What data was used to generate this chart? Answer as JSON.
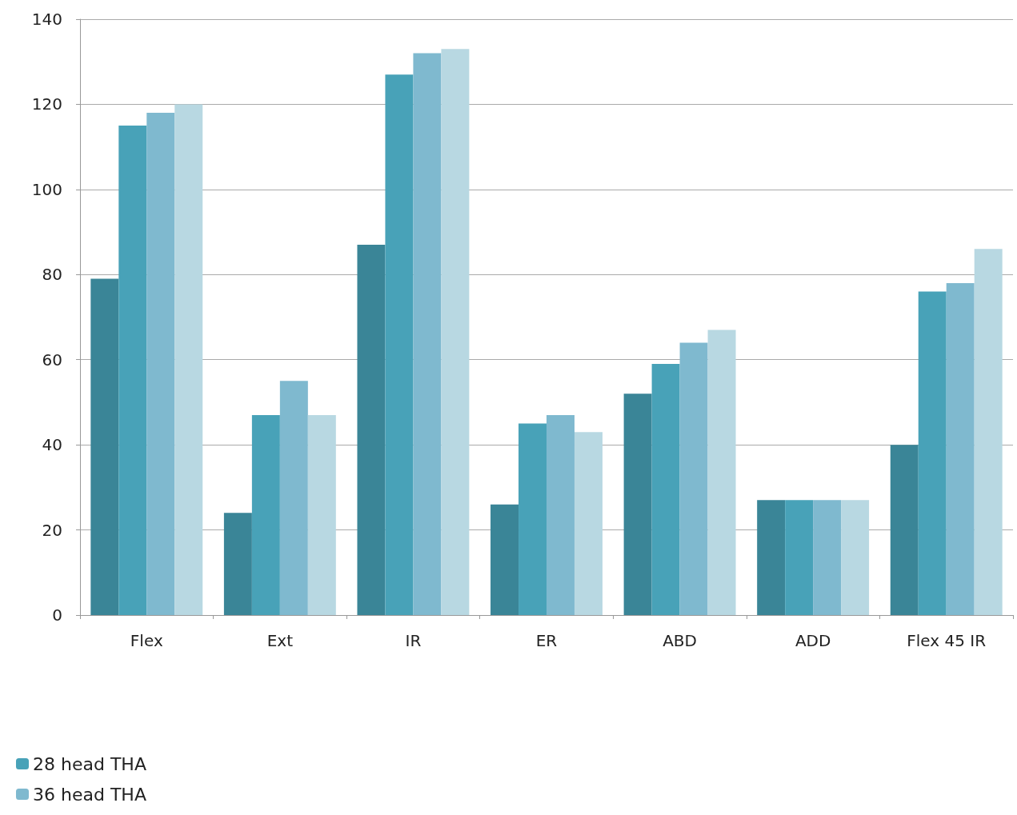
{
  "chart_data": {
    "type": "bar",
    "categories": [
      "Flex",
      "Ext",
      "IR",
      "ER",
      "ABD",
      "ADD",
      "Flex 45 IR"
    ],
    "series": [
      {
        "color": "#3a8597",
        "values": [
          79,
          24,
          87,
          26,
          52,
          27,
          40
        ]
      },
      {
        "name": "28 head THA",
        "color": "#48a2b8",
        "values": [
          115,
          47,
          127,
          45,
          59,
          27,
          76
        ]
      },
      {
        "name": "36 head THA",
        "color": "#7fb9cf",
        "values": [
          118,
          55,
          132,
          47,
          64,
          27,
          78
        ]
      },
      {
        "color": "#b8d8e2",
        "values": [
          120,
          47,
          133,
          43,
          67,
          27,
          86
        ]
      }
    ],
    "ylim": [
      0,
      140
    ],
    "yticks": [
      0,
      20,
      40,
      60,
      80,
      100,
      120,
      140
    ],
    "grid": "y",
    "legend": "bottom left"
  }
}
